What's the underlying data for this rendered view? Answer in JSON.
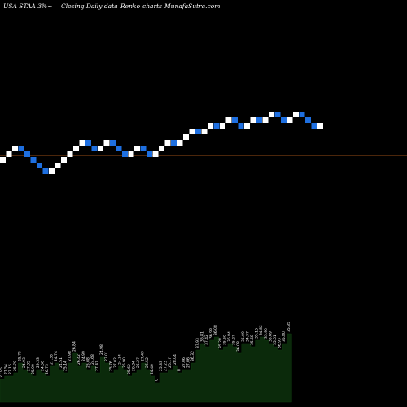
{
  "header": {
    "title": "USA STAA 3%~",
    "subtitle": "Closing Daily data",
    "chart_name": "Renko",
    "chart_word": "charts",
    "site": "MunafaSutra.com"
  },
  "colors": {
    "background": "#000000",
    "up_brick": "#ffffff",
    "down_brick": "#1e6fe0",
    "support_line": "#c8641e",
    "volume_fill": "#0b2a0b"
  },
  "chart_data": [
    {
      "type": "renko",
      "brick_colors": [
        "up",
        "down"
      ],
      "directions": [
        1,
        1,
        1,
        -1,
        -1,
        -1,
        -1,
        -1,
        1,
        1,
        1,
        1,
        1,
        1,
        -1,
        -1,
        1,
        1,
        -1,
        -1,
        -1,
        1,
        1,
        -1,
        -1,
        1,
        1,
        1,
        -1,
        1,
        1,
        1,
        -1,
        1,
        1,
        -1,
        1,
        1,
        -1,
        -1,
        1,
        1,
        -1,
        1,
        1,
        -1,
        -1,
        1,
        1,
        -1,
        -1,
        -1,
        1
      ],
      "reference_lines": [
        0,
        -1.5
      ]
    },
    {
      "type": "bar",
      "label_values": [
        "27.95",
        "27.54",
        "27.15",
        "25.79",
        "25.75",
        "24.93",
        "27.35",
        "25.99",
        "29.33",
        "24.56",
        "26.73",
        "27.38",
        "24.74",
        "24.51",
        "25.14",
        "27.98",
        "26.84",
        "26.42",
        "24.99",
        "25.08",
        "24.68",
        "27.47",
        "24.98",
        "27.01",
        "25.76",
        "27.02",
        "24.34",
        "25.90",
        "25.62",
        "26.84",
        "25.27",
        "27.49",
        "26.52",
        "24.40",
        "0",
        "25.83",
        "27.23",
        "26.17",
        "28.04",
        "0",
        "27.06",
        "27.06",
        "36.32",
        "37.93",
        "36.81",
        "37.42",
        "36.99",
        "36.08",
        "35.28",
        "35.60",
        "36.84",
        "35.27",
        "36.08",
        "35.09",
        "34.97",
        "35.58",
        "35.16",
        "34.82",
        "35.90",
        "35.69",
        "35.01",
        "36.93",
        "35.80",
        "35.85"
      ],
      "values": [
        7,
        8,
        8,
        9,
        12,
        10,
        9,
        8,
        10,
        9,
        8,
        11,
        12,
        10,
        9,
        12,
        15,
        11,
        12,
        10,
        11,
        9,
        14,
        12,
        9,
        10,
        11,
        10,
        8,
        9,
        10,
        12,
        10,
        8,
        6,
        9,
        9,
        10,
        11,
        9,
        10,
        10,
        12,
        16,
        18,
        17,
        19,
        20,
        16,
        17,
        18,
        17,
        15,
        18,
        18,
        17,
        19,
        20,
        19,
        18,
        17,
        16,
        18,
        21
      ]
    }
  ]
}
